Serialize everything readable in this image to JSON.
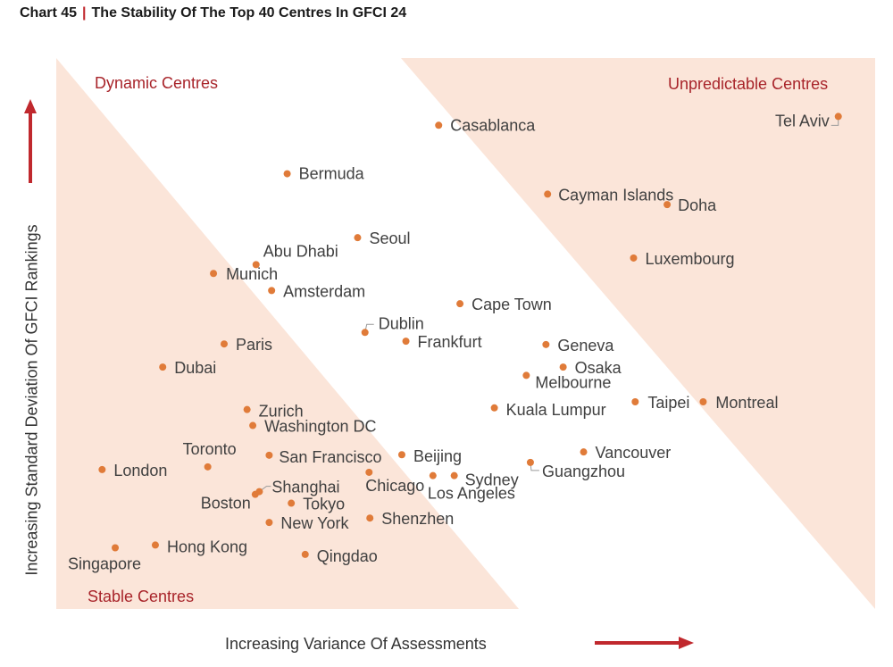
{
  "header": {
    "chart_no": "Chart 45",
    "separator": "|",
    "title": "The Stability Of The Top 40 Centres In GFCI 24"
  },
  "colors": {
    "zone_fill": "#fbe5d9",
    "point": "#e07b39",
    "accent_red": "#c0282d",
    "label": "#404040"
  },
  "chart_data": {
    "type": "scatter",
    "title": "The Stability Of The Top 40 Centres In GFCI 24",
    "xlabel": "Increasing Variance Of Assessments",
    "ylabel": "Increasing Standard Deviation Of GFCI Rankings",
    "xlim": [
      0,
      100
    ],
    "ylim": [
      0,
      100
    ],
    "grid": false,
    "legend": "none",
    "zones": [
      "Dynamic Centres",
      "Unpredictable Centres",
      "Stable Centres"
    ],
    "points": [
      {
        "label": "Tel Aviv",
        "x": 95.5,
        "y": 89.4
      },
      {
        "label": "Casablanca",
        "x": 46.7,
        "y": 87.8
      },
      {
        "label": "Bermuda",
        "x": 28.2,
        "y": 79.0
      },
      {
        "label": "Cayman Islands",
        "x": 60.0,
        "y": 75.3
      },
      {
        "label": "Doha",
        "x": 74.6,
        "y": 73.4
      },
      {
        "label": "Seoul",
        "x": 36.8,
        "y": 67.4
      },
      {
        "label": "Luxembourg",
        "x": 70.5,
        "y": 63.7
      },
      {
        "label": "Abu Dhabi",
        "x": 24.4,
        "y": 62.5
      },
      {
        "label": "Munich",
        "x": 19.2,
        "y": 60.9
      },
      {
        "label": "Amsterdam",
        "x": 26.3,
        "y": 57.8
      },
      {
        "label": "Cape Town",
        "x": 49.3,
        "y": 55.4
      },
      {
        "label": "Dublin",
        "x": 37.7,
        "y": 50.2
      },
      {
        "label": "Frankfurt",
        "x": 42.7,
        "y": 48.6
      },
      {
        "label": "Geneva",
        "x": 59.8,
        "y": 48.0
      },
      {
        "label": "Paris",
        "x": 20.5,
        "y": 48.1
      },
      {
        "label": "Dubai",
        "x": 13.0,
        "y": 43.9
      },
      {
        "label": "Osaka",
        "x": 61.9,
        "y": 43.9
      },
      {
        "label": "Melbourne",
        "x": 57.4,
        "y": 42.4
      },
      {
        "label": "Montreal",
        "x": 79.0,
        "y": 37.6
      },
      {
        "label": "Taipei",
        "x": 70.7,
        "y": 37.6
      },
      {
        "label": "Kuala Lumpur",
        "x": 53.5,
        "y": 36.5
      },
      {
        "label": "Zurich",
        "x": 23.3,
        "y": 36.2
      },
      {
        "label": "Washington DC",
        "x": 24.0,
        "y": 33.3
      },
      {
        "label": "Vancouver",
        "x": 64.4,
        "y": 28.5
      },
      {
        "label": "San Francisco",
        "x": 26.0,
        "y": 27.9
      },
      {
        "label": "Beijing",
        "x": 42.2,
        "y": 28.0
      },
      {
        "label": "Guangzhou",
        "x": 57.9,
        "y": 26.6
      },
      {
        "label": "Toronto",
        "x": 18.5,
        "y": 25.8
      },
      {
        "label": "London",
        "x": 5.6,
        "y": 25.3
      },
      {
        "label": "Sydney",
        "x": 48.6,
        "y": 24.2
      },
      {
        "label": "Los Angeles",
        "x": 46.0,
        "y": 24.2
      },
      {
        "label": "Chicago",
        "x": 38.2,
        "y": 24.8
      },
      {
        "label": "Shanghai",
        "x": 24.8,
        "y": 21.3
      },
      {
        "label": "Boston",
        "x": 24.3,
        "y": 20.8
      },
      {
        "label": "Tokyo",
        "x": 28.7,
        "y": 19.2
      },
      {
        "label": "Shenzhen",
        "x": 38.3,
        "y": 16.5
      },
      {
        "label": "New York",
        "x": 26.0,
        "y": 15.7
      },
      {
        "label": "Hong Kong",
        "x": 12.1,
        "y": 11.6
      },
      {
        "label": "Singapore",
        "x": 7.2,
        "y": 11.1
      },
      {
        "label": "Qingdao",
        "x": 30.4,
        "y": 9.9
      }
    ]
  }
}
